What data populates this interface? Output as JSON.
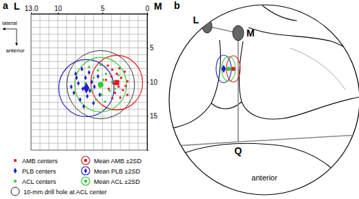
{
  "chart_data": {
    "type": "scatter",
    "panel_label": "a",
    "corner_labels": {
      "left": "L",
      "right": "M"
    },
    "direction_labels": {
      "horizontal": "lateral",
      "vertical": "anterior"
    },
    "xlim": [
      13,
      0
    ],
    "xticks": [
      {
        "value": 13,
        "label": "13.0"
      },
      10,
      5,
      0
    ],
    "ylim": [
      0,
      20
    ],
    "yticks": [
      5,
      10,
      15
    ],
    "grid": true,
    "series": [
      {
        "name": "AMB centers",
        "color": "#e31a1c",
        "marker": "square",
        "x": [
          4.4,
          3.9,
          3.1,
          2.5,
          3.4,
          4.0,
          2.9,
          2.2,
          3.8,
          3.2,
          4.3,
          2.7,
          3.6,
          2.2,
          4.6,
          3.0,
          3.9,
          2.4
        ],
        "values": [
          7.6,
          8.2,
          8.0,
          8.5,
          8.8,
          9.2,
          9.4,
          9.9,
          10.2,
          10.7,
          11.0,
          11.2,
          11.6,
          11.9,
          9.7,
          12.3,
          12.4,
          10.6
        ]
      },
      {
        "name": "PLB centers",
        "color": "#2020c8",
        "marker": "diamond",
        "x": [
          8.0,
          7.3,
          6.9,
          7.7,
          6.5,
          6.2,
          7.2,
          8.2,
          5.9,
          6.7,
          7.5,
          5.5,
          6.0,
          7.1,
          7.9,
          6.4,
          5.3,
          8.5
        ],
        "values": [
          8.8,
          8.1,
          9.4,
          10.2,
          8.6,
          10.0,
          11.0,
          11.6,
          10.7,
          12.1,
          12.6,
          9.2,
          13.1,
          13.6,
          9.4,
          11.3,
          11.9,
          10.7
        ]
      },
      {
        "name": "ACL centers",
        "color": "#2ecc2e",
        "marker": "circle",
        "x": [
          6.5,
          5.5,
          4.6,
          6.0,
          4.9,
          3.9,
          5.3,
          6.2,
          4.2,
          5.1,
          5.7,
          3.6,
          6.9,
          4.7,
          3.2,
          5.2
        ],
        "values": [
          7.8,
          8.3,
          8.8,
          9.4,
          9.7,
          10.0,
          10.7,
          11.2,
          11.3,
          11.9,
          12.6,
          11.0,
          10.2,
          12.9,
          9.0,
          7.5
        ]
      }
    ],
    "means": [
      {
        "name": "Mean AMB ±2SD",
        "color": "#e31a1c",
        "marker": "square",
        "x": 3.4,
        "y": 10.1,
        "sd2_x": 2.9,
        "sd2_y": 4.0
      },
      {
        "name": "Mean PLB ±2SD",
        "color": "#2020c8",
        "marker": "diamond",
        "x": 6.8,
        "y": 10.9,
        "sd2_x": 3.1,
        "sd2_y": 4.2
      },
      {
        "name": "Mean ACL ±2SD",
        "color": "#2ecc2e",
        "marker": "circle",
        "x": 5.2,
        "y": 10.4,
        "sd2_x": 2.9,
        "sd2_y": 4.0
      }
    ],
    "drill_hole": {
      "name": "10-mm drill hole at ACL center",
      "color": "#000000",
      "x": 5.2,
      "y": 10.4,
      "radius_x": 3.8,
      "radius_y": 5.0
    }
  },
  "diagram": {
    "panel_label": "b",
    "labels": {
      "lateral_point": "L",
      "medial_point": "M",
      "q_point": "Q",
      "direction": "anterior"
    }
  }
}
